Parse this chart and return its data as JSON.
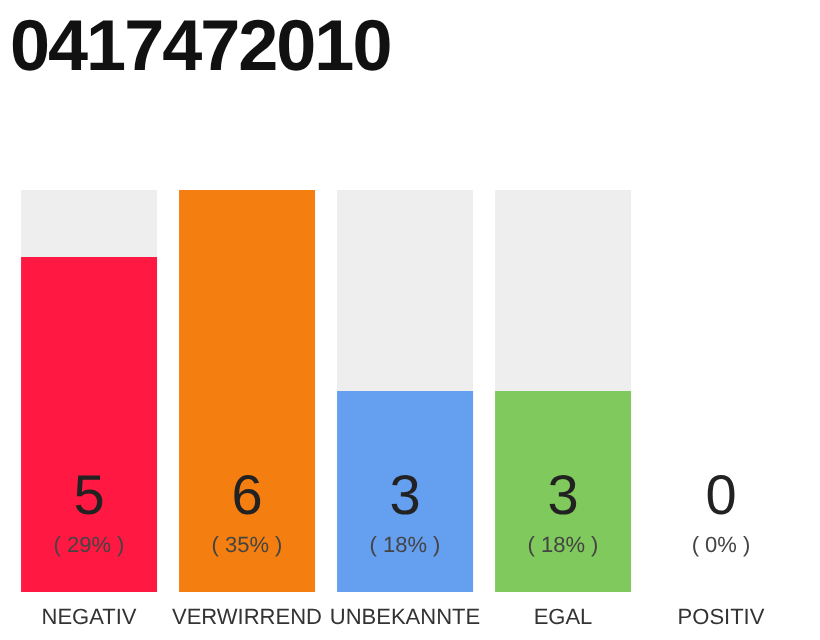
{
  "chart_data": {
    "type": "bar",
    "title": "0417472010",
    "categories": [
      "NEGATIV",
      "VERWIRREND",
      "UNBEKANNTE",
      "EGAL",
      "POSITIV"
    ],
    "values": [
      5,
      6,
      3,
      3,
      0
    ],
    "colors": [
      "#ff1841",
      "#f47f10",
      "#659ff0",
      "#80c95c",
      "#eeeeee"
    ],
    "value_labels": [
      "5\n( 29% )",
      "6\n( 35% )",
      "3\n( 18% )",
      "3\n( 18% )",
      "0\n( 0% )"
    ],
    "tick_labels": "x",
    "grid": false
  }
}
